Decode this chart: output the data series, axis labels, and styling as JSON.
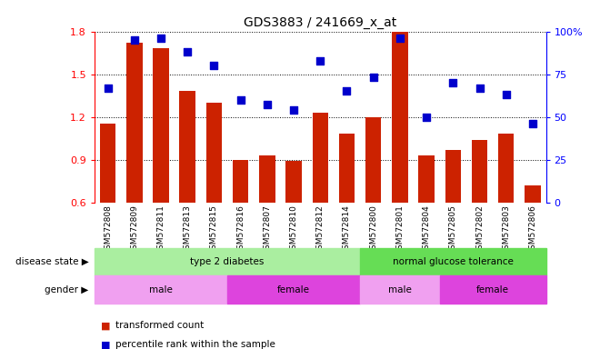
{
  "title": "GDS3883 / 241669_x_at",
  "samples": [
    "GSM572808",
    "GSM572809",
    "GSM572811",
    "GSM572813",
    "GSM572815",
    "GSM572816",
    "GSM572807",
    "GSM572810",
    "GSM572812",
    "GSM572814",
    "GSM572800",
    "GSM572801",
    "GSM572804",
    "GSM572805",
    "GSM572802",
    "GSM572803",
    "GSM572806"
  ],
  "transformed_count": [
    1.15,
    1.72,
    1.68,
    1.38,
    1.3,
    0.9,
    0.93,
    0.89,
    1.23,
    1.08,
    1.2,
    1.8,
    0.93,
    0.97,
    1.04,
    1.08,
    0.72
  ],
  "percentile_rank": [
    67,
    95,
    96,
    88,
    80,
    60,
    57,
    54,
    83,
    65,
    73,
    96,
    50,
    70,
    67,
    63,
    46
  ],
  "ylim_left": [
    0.6,
    1.8
  ],
  "ylim_right": [
    0,
    100
  ],
  "yticks_left": [
    0.6,
    0.9,
    1.2,
    1.5,
    1.8
  ],
  "yticks_right": [
    0,
    25,
    50,
    75,
    100
  ],
  "bar_color": "#cc2200",
  "dot_color": "#0000cc",
  "bg_color": "#ffffff",
  "plot_bg": "#ffffff",
  "disease_state": [
    {
      "label": "type 2 diabetes",
      "start": 0,
      "end": 10,
      "color": "#aaeea0"
    },
    {
      "label": "normal glucose tolerance",
      "start": 10,
      "end": 17,
      "color": "#66dd55"
    }
  ],
  "gender": [
    {
      "label": "male",
      "start": 0,
      "end": 5,
      "color": "#f0a0f0"
    },
    {
      "label": "female",
      "start": 5,
      "end": 10,
      "color": "#dd44dd"
    },
    {
      "label": "male",
      "start": 10,
      "end": 13,
      "color": "#f0a0f0"
    },
    {
      "label": "female",
      "start": 13,
      "end": 17,
      "color": "#dd44dd"
    }
  ],
  "legend": [
    {
      "label": "transformed count",
      "color": "#cc2200"
    },
    {
      "label": "percentile rank within the sample",
      "color": "#0000cc"
    }
  ]
}
